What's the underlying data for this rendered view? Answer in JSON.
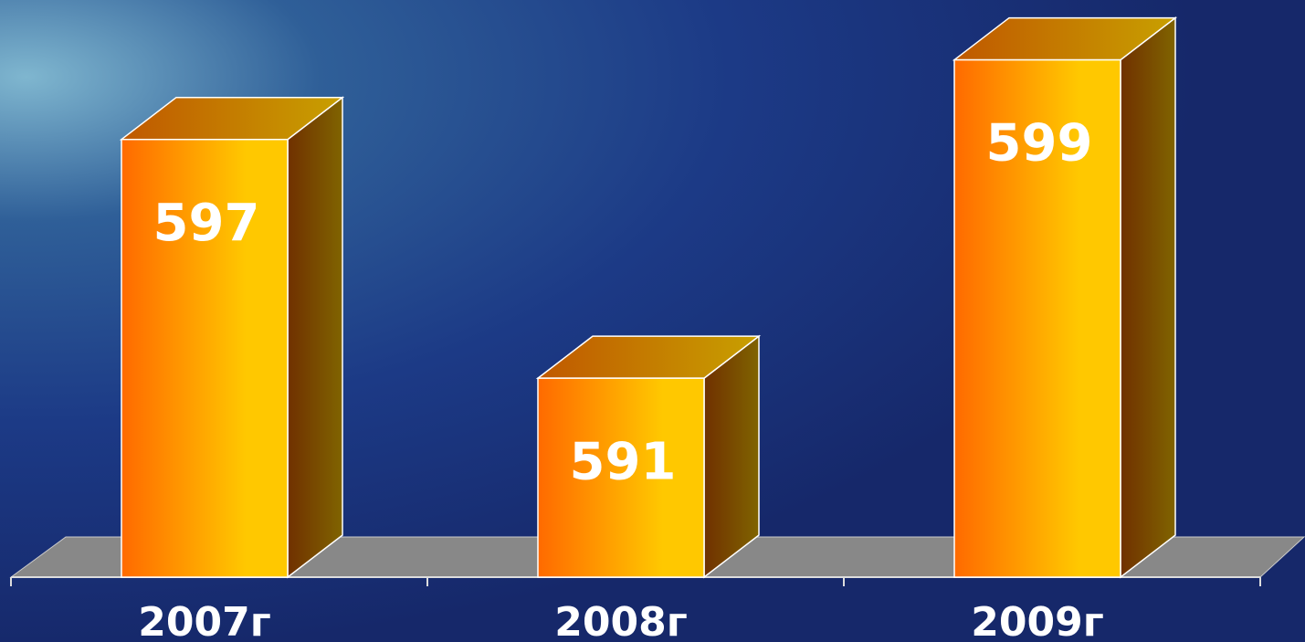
{
  "chart_data": {
    "type": "bar3d",
    "categories": [
      "2007г",
      "2008г",
      "2009г"
    ],
    "values": [
      597,
      591,
      599
    ],
    "color": "#ffc800",
    "ylim": [
      586,
      600
    ]
  }
}
